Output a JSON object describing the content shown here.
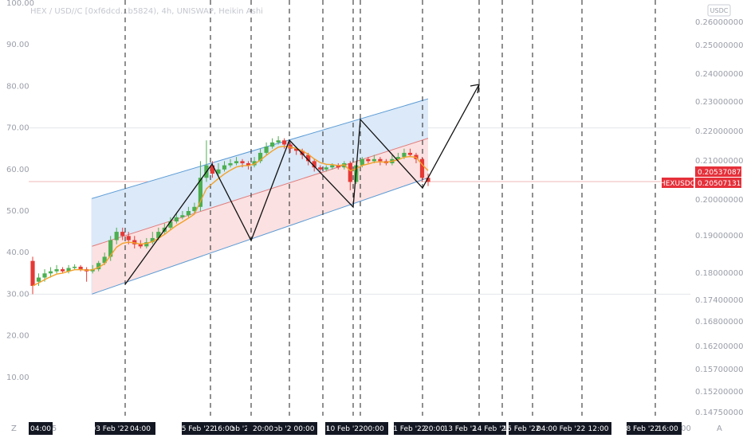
{
  "header": {
    "title": "HEX / USD//C [0xf6dcd...b5824), 4h, UNISWAP, Heikin Ashi",
    "currency_badge": "USDC"
  },
  "colors": {
    "bull": "#4caf50",
    "bear": "#e53935",
    "ma": "#f2a129",
    "channel_upper_fill": "#dbe9f8",
    "channel_lower_fill": "#fbe1e1",
    "channel_border": "#5b9bd5",
    "price_tag": "#e5303a",
    "time_tag": "#131722"
  },
  "left_axis": {
    "ticks": [
      "100.00",
      "90.00",
      "80.00",
      "70.00",
      "60.00",
      "50.00",
      "40.00",
      "30.00",
      "20.00",
      "10.00"
    ]
  },
  "right_axis": {
    "ticks": [
      "0.2600000000",
      "0.2500000000",
      "0.2400000000",
      "0.2300000000",
      "0.2200000000",
      "0.2100000000",
      "0.2000000000",
      "0.1900000000",
      "0.1800000000",
      "0.1740000000",
      "0.1680000000",
      "0.1620000000",
      "0.1570000000",
      "0.1520000000",
      "0.1475000000"
    ],
    "price_tags": [
      {
        "label": "",
        "value": "0.2053708703"
      },
      {
        "label": "HEXUSDC",
        "value": "0.2050713128"
      }
    ]
  },
  "time_axis": {
    "left_corner": "Z",
    "right_corner": "A",
    "labels": [
      "04:00",
      "5",
      "03 Feb '22",
      "04:00",
      "05 Feb '22",
      "16:00",
      "ɔb '22",
      "20:00",
      "ɔb '22",
      "00:00",
      "I",
      "10 Feb '22",
      "00:00",
      "11 Feb '22",
      "20:00",
      "13 Feb '22",
      "14 Feb '22",
      "15 Feb '22",
      "04:00",
      "Feb '22",
      "12:00",
      "18 Feb '22",
      "16:00",
      "00"
    ]
  },
  "chart_data": {
    "type": "candlestick",
    "title": "HEX / USD//C [0xf6dcd...b5824), 4h, UNISWAP, Heikin Ashi",
    "y_axis": "left scale 10.00–100.00; right scale 0.1475000000–0.2600000000 (USDC)",
    "ylim": [
      0,
      100
    ],
    "candles": [
      {
        "o": 38,
        "c": 32,
        "h": 39,
        "l": 30
      },
      {
        "o": 33,
        "c": 34,
        "h": 35,
        "l": 32
      },
      {
        "o": 34,
        "c": 35,
        "h": 36,
        "l": 33
      },
      {
        "o": 35,
        "c": 35.5,
        "h": 36.5,
        "l": 34
      },
      {
        "o": 35.5,
        "c": 36,
        "h": 37,
        "l": 35
      },
      {
        "o": 36,
        "c": 35.5,
        "h": 36.5,
        "l": 35
      },
      {
        "o": 35.5,
        "c": 36.3,
        "h": 37,
        "l": 35
      },
      {
        "o": 36.3,
        "c": 36.6,
        "h": 37.2,
        "l": 35.8
      },
      {
        "o": 36.6,
        "c": 36,
        "h": 37,
        "l": 35.5
      },
      {
        "o": 36,
        "c": 35.5,
        "h": 36.5,
        "l": 33
      },
      {
        "o": 35.5,
        "c": 36,
        "h": 37,
        "l": 35
      },
      {
        "o": 36,
        "c": 37.5,
        "h": 38,
        "l": 35.5
      },
      {
        "o": 37.5,
        "c": 39,
        "h": 40,
        "l": 37
      },
      {
        "o": 39,
        "c": 43,
        "h": 44,
        "l": 38
      },
      {
        "o": 43,
        "c": 45,
        "h": 46,
        "l": 42
      },
      {
        "o": 45,
        "c": 44,
        "h": 46,
        "l": 43
      },
      {
        "o": 44,
        "c": 43,
        "h": 45,
        "l": 42
      },
      {
        "o": 43,
        "c": 42,
        "h": 44,
        "l": 41
      },
      {
        "o": 42,
        "c": 41.5,
        "h": 43,
        "l": 41
      },
      {
        "o": 41.5,
        "c": 42.5,
        "h": 43.5,
        "l": 41
      },
      {
        "o": 42.5,
        "c": 43.5,
        "h": 45,
        "l": 42
      },
      {
        "o": 43.5,
        "c": 45,
        "h": 46,
        "l": 43
      },
      {
        "o": 45,
        "c": 46,
        "h": 47,
        "l": 44.5
      },
      {
        "o": 46,
        "c": 47.5,
        "h": 48.5,
        "l": 45.5
      },
      {
        "o": 47.5,
        "c": 48.5,
        "h": 49.5,
        "l": 47
      },
      {
        "o": 48.5,
        "c": 49,
        "h": 50,
        "l": 48
      },
      {
        "o": 49,
        "c": 50,
        "h": 51,
        "l": 48.5
      },
      {
        "o": 50,
        "c": 51,
        "h": 52,
        "l": 49.5
      },
      {
        "o": 51,
        "c": 58,
        "h": 62,
        "l": 50
      },
      {
        "o": 58,
        "c": 61,
        "h": 67,
        "l": 57
      },
      {
        "o": 61,
        "c": 59,
        "h": 62,
        "l": 58
      },
      {
        "o": 59,
        "c": 60,
        "h": 61.5,
        "l": 58.5
      },
      {
        "o": 60,
        "c": 61,
        "h": 62,
        "l": 59.5
      },
      {
        "o": 61,
        "c": 61.5,
        "h": 62.5,
        "l": 60.5
      },
      {
        "o": 61.5,
        "c": 62,
        "h": 63,
        "l": 61
      },
      {
        "o": 62,
        "c": 61.5,
        "h": 62.5,
        "l": 60.5
      },
      {
        "o": 61.5,
        "c": 61,
        "h": 62,
        "l": 60
      },
      {
        "o": 61,
        "c": 62,
        "h": 63,
        "l": 60.5
      },
      {
        "o": 62,
        "c": 64,
        "h": 65,
        "l": 61.5
      },
      {
        "o": 64,
        "c": 65.5,
        "h": 66.5,
        "l": 63.5
      },
      {
        "o": 65.5,
        "c": 66.5,
        "h": 67.5,
        "l": 65
      },
      {
        "o": 66.5,
        "c": 67,
        "h": 68,
        "l": 66
      },
      {
        "o": 67,
        "c": 66,
        "h": 67.5,
        "l": 65
      },
      {
        "o": 66,
        "c": 65,
        "h": 66.5,
        "l": 64
      },
      {
        "o": 65,
        "c": 64.5,
        "h": 65.5,
        "l": 63.5
      },
      {
        "o": 64.5,
        "c": 63.5,
        "h": 65,
        "l": 62.5
      },
      {
        "o": 63.5,
        "c": 62,
        "h": 64,
        "l": 61
      },
      {
        "o": 62,
        "c": 60.5,
        "h": 62.5,
        "l": 59.5
      },
      {
        "o": 60.5,
        "c": 60,
        "h": 61,
        "l": 59
      },
      {
        "o": 60,
        "c": 60.5,
        "h": 61,
        "l": 59.5
      },
      {
        "o": 60.5,
        "c": 61,
        "h": 61.5,
        "l": 60
      },
      {
        "o": 61,
        "c": 60.5,
        "h": 61.5,
        "l": 60
      },
      {
        "o": 60.5,
        "c": 61.5,
        "h": 62,
        "l": 60
      },
      {
        "o": 61.5,
        "c": 57,
        "h": 62,
        "l": 55
      },
      {
        "o": 57,
        "c": 61,
        "h": 62,
        "l": 56.5
      },
      {
        "o": 61,
        "c": 62.5,
        "h": 63,
        "l": 60.5
      },
      {
        "o": 62.5,
        "c": 62,
        "h": 63,
        "l": 61.5
      },
      {
        "o": 62,
        "c": 62.5,
        "h": 63.5,
        "l": 61.5
      },
      {
        "o": 62.5,
        "c": 62,
        "h": 63,
        "l": 61
      },
      {
        "o": 62,
        "c": 61.5,
        "h": 62.5,
        "l": 61
      },
      {
        "o": 61.5,
        "c": 62.5,
        "h": 63.5,
        "l": 61
      },
      {
        "o": 62.5,
        "c": 63,
        "h": 64,
        "l": 62
      },
      {
        "o": 63,
        "c": 64,
        "h": 65,
        "l": 62.5
      },
      {
        "o": 64,
        "c": 63.5,
        "h": 65,
        "l": 63
      },
      {
        "o": 63.5,
        "c": 62.5,
        "h": 64,
        "l": 61.5
      },
      {
        "o": 62.5,
        "c": 58,
        "h": 63,
        "l": 57
      },
      {
        "o": 58,
        "c": 57,
        "h": 59,
        "l": 56
      }
    ],
    "price_levels": [
      "0.2053708703",
      "0.2050713128"
    ],
    "legend": "none"
  }
}
